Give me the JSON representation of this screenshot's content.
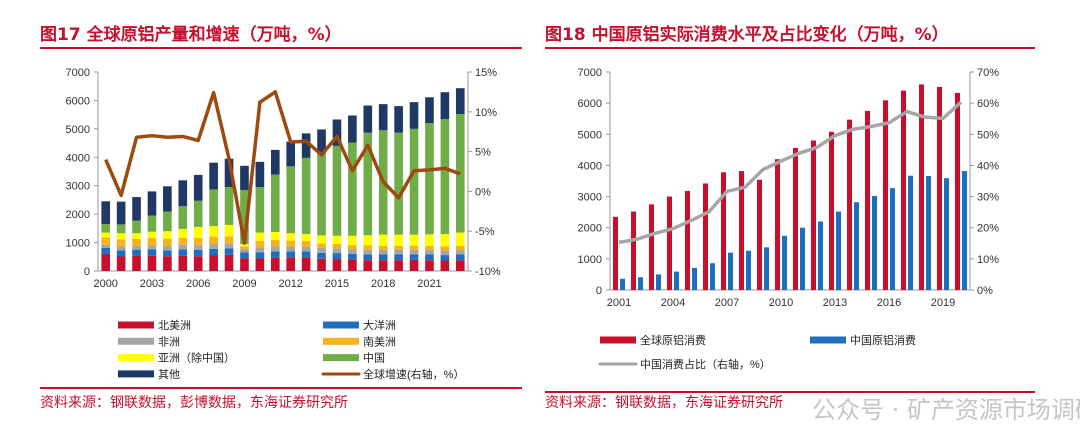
{
  "chart_data": [
    {
      "type": "bar",
      "stacked": true,
      "title": "图17  全球原铝产量和增速（万吨，%）",
      "source": "资料来源：钢联数据，彭博数据，东海证券研究所",
      "categories": [
        "2000",
        "2001",
        "2002",
        "2003",
        "2004",
        "2005",
        "2006",
        "2007",
        "2008",
        "2009",
        "2010",
        "2011",
        "2012",
        "2013",
        "2014",
        "2015",
        "2016",
        "2017",
        "2018",
        "2019",
        "2020",
        "2021",
        "2022",
        "2023"
      ],
      "xtick_labels": [
        "2000",
        "2003",
        "2006",
        "2009",
        "2012",
        "2015",
        "2018",
        "2021"
      ],
      "ylim": [
        0,
        7000
      ],
      "yticks": [
        "0",
        "1000",
        "2000",
        "3000",
        "4000",
        "5000",
        "6000",
        "7000"
      ],
      "y2lim": [
        -10,
        15
      ],
      "y2ticks": [
        "-10%",
        "-5%",
        "0%",
        "5%",
        "10%",
        "15%"
      ],
      "legend_position": "bottom",
      "series": [
        {
          "name": "北美洲",
          "color": "#c8102e",
          "values": [
            600,
            510,
            540,
            540,
            520,
            540,
            520,
            560,
            570,
            450,
            440,
            470,
            480,
            480,
            430,
            420,
            400,
            380,
            380,
            380,
            390,
            380,
            370,
            380
          ]
        },
        {
          "name": "大洋洲",
          "color": "#1f6fbf",
          "values": [
            210,
            220,
            210,
            220,
            210,
            220,
            220,
            220,
            230,
            200,
            220,
            220,
            210,
            210,
            210,
            210,
            200,
            200,
            200,
            200,
            190,
            200,
            190,
            200
          ]
        },
        {
          "name": "非洲",
          "color": "#a6a6a6",
          "values": [
            110,
            130,
            130,
            140,
            150,
            160,
            170,
            170,
            170,
            120,
            170,
            170,
            170,
            170,
            170,
            170,
            170,
            170,
            170,
            170,
            170,
            170,
            160,
            160
          ]
        },
        {
          "name": "南美洲",
          "color": "#f5b41e",
          "values": [
            260,
            250,
            250,
            260,
            260,
            250,
            250,
            260,
            250,
            100,
            230,
            230,
            210,
            200,
            160,
            150,
            140,
            150,
            140,
            140,
            140,
            140,
            150,
            150
          ]
        },
        {
          "name": "亚洲（除中国）",
          "color": "#ffff00",
          "values": [
            170,
            220,
            200,
            220,
            260,
            310,
            390,
            370,
            400,
            80,
            290,
            280,
            260,
            240,
            280,
            290,
            330,
            360,
            390,
            390,
            390,
            400,
            430,
            460
          ]
        },
        {
          "name": "中国",
          "color": "#70ad47",
          "values": [
            300,
            310,
            440,
            570,
            690,
            800,
            920,
            1290,
            1330,
            1900,
            1600,
            2020,
            2350,
            2680,
            2880,
            3160,
            3280,
            3610,
            3670,
            3590,
            3720,
            3910,
            4040,
            4170
          ]
        },
        {
          "name": "其他",
          "color": "#1f3864",
          "values": [
            800,
            800,
            830,
            850,
            890,
            910,
            910,
            940,
            1000,
            850,
            890,
            870,
            870,
            860,
            850,
            930,
            950,
            950,
            920,
            930,
            940,
            910,
            950,
            910
          ]
        }
      ],
      "line_series": {
        "name": "全球增速(右轴，%）",
        "color": "#9c4a10",
        "axis": "right",
        "values": [
          4.0,
          -0.5,
          6.8,
          7.0,
          6.8,
          6.9,
          6.4,
          12.4,
          4.1,
          -6.5,
          11.2,
          12.5,
          6.2,
          6.3,
          4.6,
          6.9,
          2.6,
          5.8,
          1.2,
          -0.8,
          2.6,
          2.7,
          2.9,
          2.2
        ]
      }
    },
    {
      "type": "bar",
      "title": "图18  中国原铝实际消费水平及占比变化（万吨，%）",
      "source": "资料来源：钢联数据，东海证券研究所",
      "categories": [
        "2001",
        "2002",
        "2003",
        "2004",
        "2005",
        "2006",
        "2007",
        "2008",
        "2009",
        "2010",
        "2011",
        "2012",
        "2013",
        "2014",
        "2015",
        "2016",
        "2017",
        "2018",
        "2019",
        "2020"
      ],
      "xtick_labels": [
        "2001",
        "2004",
        "2007",
        "2010",
        "2013",
        "2016",
        "2019"
      ],
      "ylim": [
        0,
        7000
      ],
      "yticks": [
        "0",
        "1000",
        "2000",
        "3000",
        "4000",
        "5000",
        "6000",
        "7000"
      ],
      "y2lim": [
        0,
        70
      ],
      "y2ticks": [
        "0%",
        "10%",
        "20%",
        "30%",
        "40%",
        "50%",
        "60%",
        "70%"
      ],
      "legend_position": "bottom",
      "series": [
        {
          "name": "全球原铝消费",
          "color": "#c8102e",
          "values": [
            2350,
            2520,
            2750,
            3000,
            3180,
            3420,
            3780,
            3820,
            3540,
            4200,
            4560,
            4800,
            5080,
            5470,
            5750,
            6090,
            6400,
            6600,
            6520,
            6330
          ]
        },
        {
          "name": "中国原铝消费",
          "color": "#1f6fbf",
          "values": [
            360,
            410,
            500,
            590,
            710,
            860,
            1200,
            1260,
            1370,
            1740,
            2000,
            2200,
            2520,
            2820,
            3020,
            3270,
            3670,
            3660,
            3590,
            3820
          ]
        }
      ],
      "line_series": {
        "name": "中国消费占比（右轴，%）",
        "color": "#a6a6a6",
        "axis": "right",
        "values": [
          15.3,
          16.3,
          18.2,
          19.7,
          22.3,
          25.1,
          31.7,
          33.0,
          38.7,
          41.4,
          43.9,
          45.8,
          49.6,
          51.6,
          52.5,
          53.7,
          57.3,
          55.5,
          55.1,
          60.3
        ]
      }
    }
  ],
  "watermark": "公众号 · 矿产资源市场调研"
}
